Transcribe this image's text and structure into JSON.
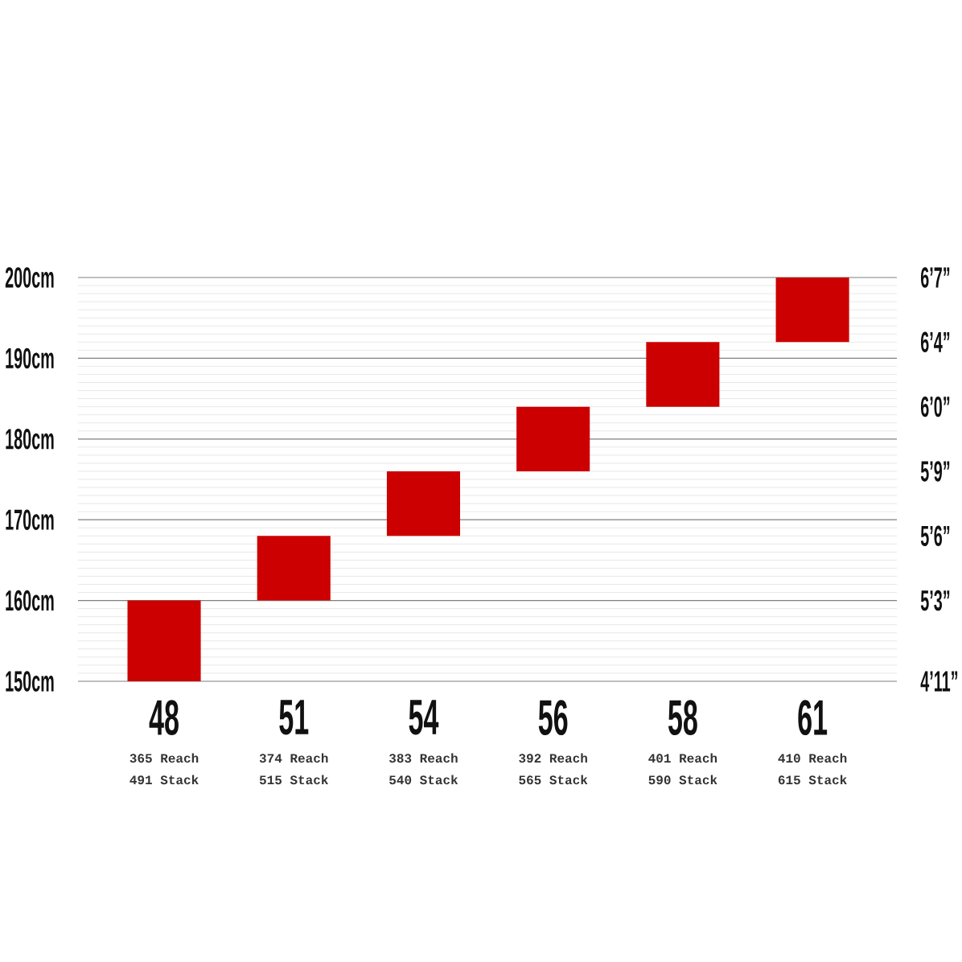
{
  "chart_data": {
    "type": "bar",
    "categories": [
      "48",
      "51",
      "54",
      "56",
      "58",
      "61"
    ],
    "base": [
      150,
      160,
      168,
      176,
      184,
      192
    ],
    "values": [
      10,
      8,
      8,
      8,
      8,
      8
    ],
    "color": "#cc0000",
    "ylim": [
      150,
      200
    ],
    "yticks": [
      {
        "value": 150,
        "label": "150cm"
      },
      {
        "value": 160,
        "label": "160cm"
      },
      {
        "value": 170,
        "label": "170cm"
      },
      {
        "value": 180,
        "label": "180cm"
      },
      {
        "value": 190,
        "label": "190cm"
      },
      {
        "value": 200,
        "label": "200cm"
      }
    ],
    "grid": "y",
    "annotations": [
      "365 Reach",
      "491 Stack",
      "374 Reach",
      "515 Stack",
      "383 Reach",
      "540 Stack",
      "392 Reach",
      "565 Stack",
      "401 Reach",
      "590 Stack",
      "410 Reach",
      "615 Stack",
      "6’7”",
      "6’4”",
      "6’0”",
      "5’9”",
      "5’6”",
      "5’3”",
      "4’11”"
    ]
  }
}
